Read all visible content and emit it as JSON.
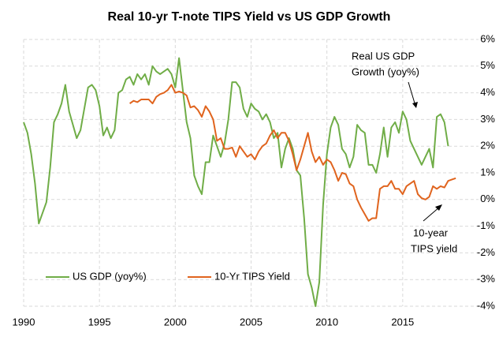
{
  "chart_data": {
    "type": "line",
    "title": "Real 10-yr T-note TIPS Yield vs US GDP Growth",
    "xlim": [
      1990,
      2020
    ],
    "xticks": [
      1990,
      1995,
      2000,
      2005,
      2010,
      2015
    ],
    "ylim": [
      -4,
      6
    ],
    "yticks": [
      {
        "value": -4,
        "label": "-4%"
      },
      {
        "value": -3,
        "label": "-3%"
      },
      {
        "value": -2,
        "label": "-2%"
      },
      {
        "value": -1,
        "label": "-1%"
      },
      {
        "value": 0,
        "label": "0%"
      },
      {
        "value": 1,
        "label": "1%"
      },
      {
        "value": 2,
        "label": "2%"
      },
      {
        "value": 3,
        "label": "3%"
      },
      {
        "value": 4,
        "label": "4%"
      },
      {
        "value": 5,
        "label": "5%"
      },
      {
        "value": 6,
        "label": "6%"
      }
    ],
    "y_axis_side": "right",
    "grid": true,
    "legend": "bottom-left",
    "series": [
      {
        "name": "US GDP (yoy%)",
        "color": "#70ad47",
        "x": [
          1990,
          1990.25,
          1990.5,
          1990.75,
          1991,
          1991.25,
          1991.5,
          1991.75,
          1992,
          1992.25,
          1992.5,
          1992.75,
          1993,
          1993.25,
          1993.5,
          1993.75,
          1994,
          1994.25,
          1994.5,
          1994.75,
          1995,
          1995.25,
          1995.5,
          1995.75,
          1996,
          1996.25,
          1996.5,
          1996.75,
          1997,
          1997.25,
          1997.5,
          1997.75,
          1998,
          1998.25,
          1998.5,
          1998.75,
          1999,
          1999.25,
          1999.5,
          1999.75,
          2000,
          2000.25,
          2000.5,
          2000.75,
          2001,
          2001.25,
          2001.5,
          2001.75,
          2002,
          2002.25,
          2002.5,
          2002.75,
          2003,
          2003.25,
          2003.5,
          2003.75,
          2004,
          2004.25,
          2004.5,
          2004.75,
          2005,
          2005.25,
          2005.5,
          2005.75,
          2006,
          2006.25,
          2006.5,
          2006.75,
          2007,
          2007.25,
          2007.5,
          2007.75,
          2008,
          2008.25,
          2008.5,
          2008.75,
          2009,
          2009.25,
          2009.5,
          2009.75,
          2010,
          2010.25,
          2010.5,
          2010.75,
          2011,
          2011.25,
          2011.5,
          2011.75,
          2012,
          2012.25,
          2012.5,
          2012.75,
          2013,
          2013.25,
          2013.5,
          2013.75,
          2014,
          2014.25,
          2014.5,
          2014.75,
          2015,
          2015.25,
          2015.5,
          2015.75,
          2016,
          2016.25,
          2016.5,
          2016.75,
          2017,
          2017.25,
          2017.5,
          2017.75,
          2018
        ],
        "values": [
          2.9,
          2.5,
          1.7,
          0.6,
          -0.9,
          -0.5,
          -0.1,
          1.2,
          2.9,
          3.2,
          3.6,
          4.3,
          3.3,
          2.8,
          2.3,
          2.6,
          3.4,
          4.2,
          4.3,
          4.1,
          3.5,
          2.4,
          2.7,
          2.3,
          2.6,
          4.0,
          4.1,
          4.5,
          4.6,
          4.3,
          4.7,
          4.5,
          4.7,
          4.3,
          5.0,
          4.8,
          4.7,
          4.8,
          4.9,
          4.7,
          4.2,
          5.3,
          4.1,
          2.9,
          2.3,
          0.9,
          0.5,
          0.2,
          1.4,
          1.4,
          2.4,
          2.0,
          1.6,
          2.1,
          3.0,
          4.4,
          4.4,
          4.2,
          3.4,
          3.1,
          3.6,
          3.4,
          3.3,
          3.0,
          3.2,
          2.9,
          2.3,
          2.5,
          1.2,
          1.9,
          2.3,
          1.9,
          1.1,
          0.9,
          -0.7,
          -2.8,
          -3.3,
          -4.0,
          -3.1,
          -0.2,
          1.7,
          2.7,
          3.1,
          2.8,
          1.9,
          1.7,
          1.2,
          1.6,
          2.8,
          2.6,
          2.5,
          1.3,
          1.3,
          1.0,
          1.7,
          2.7,
          1.6,
          2.7,
          2.9,
          2.5,
          3.3,
          3.0,
          2.2,
          1.9,
          1.6,
          1.3,
          1.6,
          1.9,
          1.2,
          3.1,
          3.2,
          2.9,
          2.0
        ]
      },
      {
        "name": "10-Yr TIPS Yield",
        "color": "#e0641e",
        "x": [
          1997,
          1997.25,
          1997.5,
          1997.75,
          1998,
          1998.25,
          1998.5,
          1998.75,
          1999,
          1999.25,
          1999.5,
          1999.75,
          2000,
          2000.25,
          2000.5,
          2000.75,
          2001,
          2001.25,
          2001.5,
          2001.75,
          2002,
          2002.25,
          2002.5,
          2002.75,
          2003,
          2003.25,
          2003.5,
          2003.75,
          2004,
          2004.25,
          2004.5,
          2004.75,
          2005,
          2005.25,
          2005.5,
          2005.75,
          2006,
          2006.25,
          2006.5,
          2006.75,
          2007,
          2007.25,
          2007.5,
          2007.75,
          2008,
          2008.25,
          2008.5,
          2008.75,
          2009,
          2009.25,
          2009.5,
          2009.75,
          2010,
          2010.25,
          2010.5,
          2010.75,
          2011,
          2011.25,
          2011.5,
          2011.75,
          2012,
          2012.25,
          2012.5,
          2012.75,
          2013,
          2013.25,
          2013.5,
          2013.75,
          2014,
          2014.25,
          2014.5,
          2014.75,
          2015,
          2015.25,
          2015.5,
          2015.75,
          2016,
          2016.25,
          2016.5,
          2016.75,
          2017,
          2017.25,
          2017.5,
          2017.75,
          2018,
          2018.25,
          2018.5
        ],
        "values": [
          3.6,
          3.7,
          3.65,
          3.75,
          3.75,
          3.75,
          3.6,
          3.85,
          3.95,
          4.0,
          4.1,
          4.3,
          4.0,
          4.05,
          4.0,
          3.9,
          3.45,
          3.5,
          3.35,
          3.1,
          3.5,
          3.3,
          3.0,
          2.2,
          2.3,
          1.9,
          1.9,
          1.95,
          1.6,
          2.0,
          1.8,
          1.6,
          1.7,
          1.5,
          1.8,
          2.0,
          2.1,
          2.4,
          2.6,
          2.3,
          2.5,
          2.5,
          2.2,
          1.7,
          1.1,
          1.5,
          2.0,
          2.5,
          1.8,
          1.4,
          1.6,
          1.3,
          1.5,
          1.4,
          1.1,
          0.7,
          1.0,
          0.95,
          0.6,
          0.5,
          0.0,
          -0.3,
          -0.55,
          -0.8,
          -0.7,
          -0.7,
          0.4,
          0.5,
          0.5,
          0.7,
          0.4,
          0.4,
          0.2,
          0.5,
          0.6,
          0.7,
          0.2,
          0.05,
          0.0,
          0.1,
          0.5,
          0.4,
          0.5,
          0.45,
          0.7,
          0.75,
          0.8
        ]
      }
    ],
    "annotations": [
      {
        "lines": [
          "Real US GDP",
          "Growth  (yoy%)"
        ]
      },
      {
        "lines": [
          "10-year",
          "TIPS yield"
        ]
      }
    ]
  }
}
